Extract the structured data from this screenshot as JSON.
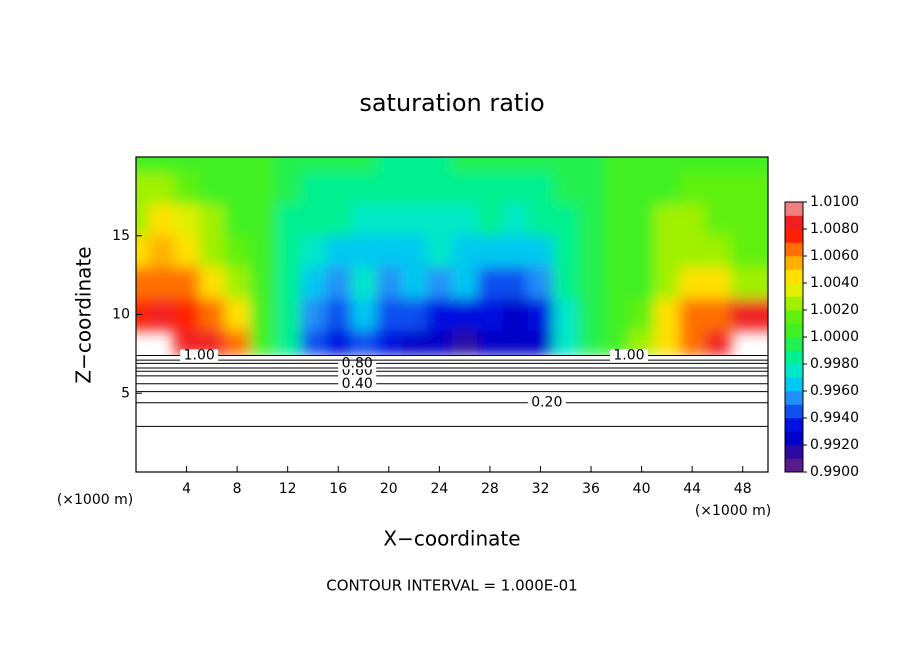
{
  "chart_data": {
    "type": "contourf",
    "title": "saturation ratio",
    "xlabel": "X−coordinate",
    "ylabel": "Z−coordinate",
    "x_unit": "(×1000 m)",
    "footer": "CONTOUR INTERVAL = 1.000E-01",
    "xlim": [
      0,
      50
    ],
    "ylim": [
      0,
      20
    ],
    "xticks": [
      4,
      8,
      12,
      16,
      20,
      24,
      28,
      32,
      36,
      40,
      44,
      48
    ],
    "yticks": [
      5,
      10,
      15
    ],
    "field": {
      "x": [
        0,
        2,
        4,
        6,
        8,
        10,
        12,
        14,
        16,
        18,
        20,
        22,
        24,
        26,
        28,
        30,
        32,
        34,
        36,
        38,
        40,
        42,
        44,
        46,
        48,
        50
      ],
      "z": [
        20,
        18,
        16,
        14,
        12,
        10,
        8
      ],
      "values": [
        [
          1.001,
          1.001,
          1.001,
          1.0005,
          1.0003,
          1.0,
          0.9995,
          0.999,
          0.999,
          0.999,
          0.9988,
          0.9988,
          0.9988,
          0.999,
          0.999,
          0.999,
          0.999,
          0.9993,
          0.9997,
          1.0,
          1.0,
          1.0,
          1.0005,
          1.001,
          1.001,
          1.001
        ],
        [
          1.002,
          1.002,
          1.0015,
          1.001,
          1.0005,
          1.0,
          0.9993,
          0.9988,
          0.9985,
          0.9985,
          0.9983,
          0.9983,
          0.9985,
          0.9985,
          0.9985,
          0.9985,
          0.9988,
          0.9992,
          0.9997,
          1.0,
          1.0005,
          1.001,
          1.0015,
          1.0015,
          1.0015,
          1.0015
        ],
        [
          1.003,
          1.004,
          1.0035,
          1.002,
          1.001,
          1.0,
          0.9985,
          0.998,
          0.998,
          0.9978,
          0.9975,
          0.9975,
          0.9975,
          0.9978,
          0.998,
          0.997,
          0.998,
          0.9988,
          0.9995,
          1.0,
          1.001,
          1.002,
          1.002,
          1.0015,
          1.0015,
          1.0015
        ],
        [
          1.005,
          1.0055,
          1.005,
          1.003,
          1.0015,
          1.0,
          0.998,
          0.997,
          0.9965,
          0.9968,
          0.9965,
          0.9965,
          0.997,
          0.9965,
          0.9965,
          0.996,
          0.9968,
          0.9985,
          0.9995,
          1.0,
          1.001,
          1.002,
          1.0025,
          1.002,
          1.0015,
          1.0015
        ],
        [
          1.006,
          1.007,
          1.0065,
          1.005,
          1.002,
          1.0,
          0.998,
          0.996,
          0.9955,
          0.997,
          0.9955,
          0.996,
          0.9955,
          0.996,
          0.9945,
          0.994,
          0.9955,
          0.998,
          0.9995,
          1.0,
          1.001,
          1.003,
          1.004,
          1.004,
          1.003,
          1.003
        ],
        [
          1.0075,
          1.008,
          1.0075,
          1.007,
          1.004,
          1.0,
          0.998,
          0.995,
          0.994,
          0.996,
          0.9945,
          0.9945,
          0.9935,
          0.9935,
          0.993,
          0.9925,
          0.9935,
          0.9975,
          0.9995,
          1.0,
          1.0015,
          1.004,
          1.006,
          1.007,
          1.008,
          1.008
        ],
        [
          null,
          null,
          1.008,
          1.008,
          1.006,
          1.0,
          0.998,
          0.9945,
          0.993,
          0.994,
          0.993,
          0.9925,
          0.992,
          0.9915,
          0.992,
          0.9925,
          0.9925,
          0.997,
          0.9995,
          1.0,
          1.002,
          1.005,
          1.007,
          1.008,
          null,
          null
        ]
      ]
    },
    "contours": [
      {
        "level": 0.1,
        "z": 2.9
      },
      {
        "level": {
          "value": 0.2,
          "label": "0.20"
        },
        "z": 4.4
      },
      {
        "level": 0.3,
        "z": 5.1
      },
      {
        "level": {
          "value": 0.4,
          "label": "0.40"
        },
        "z": 5.6
      },
      {
        "level": 0.5,
        "z": 6.1
      },
      {
        "level": {
          "value": 0.6,
          "label": "0.60"
        },
        "z": 6.4
      },
      {
        "level": 0.7,
        "z": 6.6
      },
      {
        "level": {
          "value": 0.8,
          "label": "0.80"
        },
        "z": 6.9
      },
      {
        "level": 0.9,
        "z": 7.1
      },
      {
        "level": {
          "value": 1.0,
          "label": "1.00"
        },
        "z": 7.4
      }
    ],
    "colorbar": {
      "lim": [
        0.99,
        1.01
      ],
      "colors": [
        "#5a1a8a",
        "#2a0aa0",
        "#0000c8",
        "#0010e0",
        "#1050f0",
        "#2090f8",
        "#00c8f0",
        "#00e8c8",
        "#00f090",
        "#20f050",
        "#40f020",
        "#60f010",
        "#a0f000",
        "#e0f000",
        "#ffe000",
        "#ffb000",
        "#ff7000",
        "#ff2000",
        "#f02020",
        "#f08080"
      ],
      "ticks": [
        {
          "value": 0.99,
          "label": "0.9900"
        },
        {
          "value": 0.992,
          "label": "0.9920"
        },
        {
          "value": 0.994,
          "label": "0.9940"
        },
        {
          "value": 0.996,
          "label": "0.9960"
        },
        {
          "value": 0.998,
          "label": "0.9980"
        },
        {
          "value": 1.0,
          "label": "1.0000"
        },
        {
          "value": 1.002,
          "label": "1.0020"
        },
        {
          "value": 1.004,
          "label": "1.0040"
        },
        {
          "value": 1.006,
          "label": "1.0060"
        },
        {
          "value": 1.008,
          "label": "1.0080"
        },
        {
          "value": 1.01,
          "label": "1.0100"
        }
      ]
    }
  }
}
